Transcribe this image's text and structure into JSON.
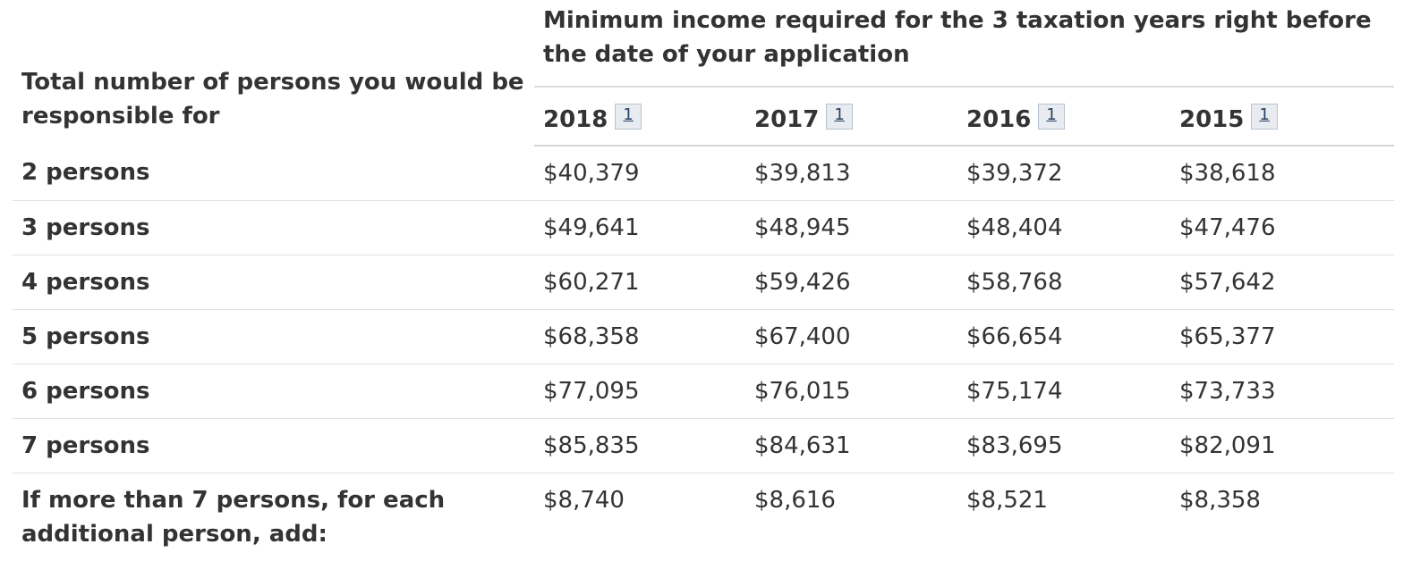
{
  "table": {
    "persons_header": "Total number of persons you would be responsible for",
    "group_header": "Minimum income required for the 3 taxation years right before the date of your application",
    "years": [
      "2018",
      "2017",
      "2016",
      "2015"
    ],
    "footnote_label": "1",
    "rows": [
      {
        "label": "2 persons",
        "values": [
          "$40,379",
          "$39,813",
          "$39,372",
          "$38,618"
        ]
      },
      {
        "label": "3 persons",
        "values": [
          "$49,641",
          "$48,945",
          "$48,404",
          "$47,476"
        ]
      },
      {
        "label": "4 persons",
        "values": [
          "$60,271",
          "$59,426",
          "$58,768",
          "$57,642"
        ]
      },
      {
        "label": "5 persons",
        "values": [
          "$68,358",
          "$67,400",
          "$66,654",
          "$65,377"
        ]
      },
      {
        "label": "6 persons",
        "values": [
          "$77,095",
          "$76,015",
          "$75,174",
          "$73,733"
        ]
      },
      {
        "label": "7 persons",
        "values": [
          "$85,835",
          "$84,631",
          "$83,695",
          "$82,091"
        ]
      },
      {
        "label": "If more than 7 persons, for each additional person, add:",
        "values": [
          "$8,740",
          "$8,616",
          "$8,521",
          "$8,358"
        ]
      }
    ]
  }
}
